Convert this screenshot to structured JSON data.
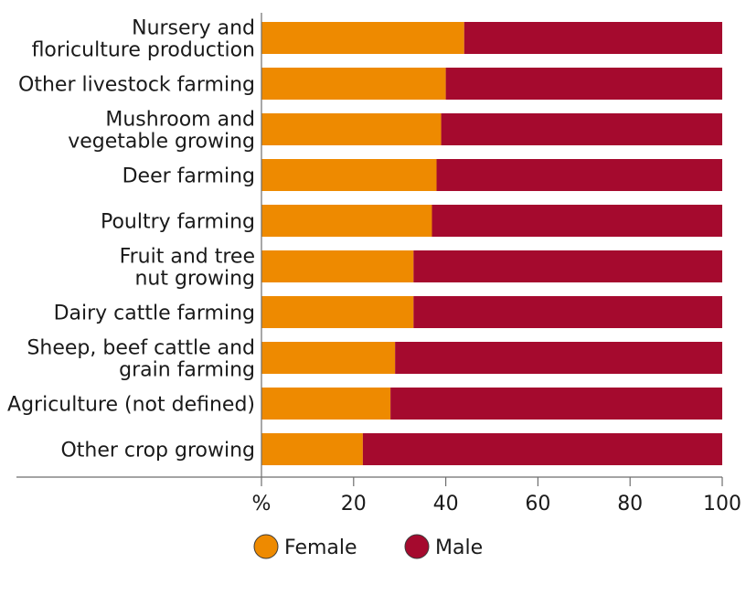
{
  "chart_data": {
    "type": "bar",
    "orientation": "horizontal",
    "stacked": true,
    "categories": [
      [
        "Nursery and",
        "floriculture production"
      ],
      [
        "Other livestock farming"
      ],
      [
        "Mushroom and",
        "vegetable growing"
      ],
      [
        "Deer farming"
      ],
      [
        "Poultry farming"
      ],
      [
        "Fruit and tree",
        "nut growing"
      ],
      [
        "Dairy cattle farming"
      ],
      [
        "Sheep, beef cattle and",
        "grain farming"
      ],
      [
        "Agriculture (not defined)"
      ],
      [
        "Other crop growing"
      ]
    ],
    "series": [
      {
        "name": "Female",
        "color": "#EE8A00",
        "values": [
          44,
          40,
          39,
          38,
          37,
          33,
          33,
          29,
          28,
          22
        ]
      },
      {
        "name": "Male",
        "color": "#A50A2E",
        "values": [
          56,
          60,
          61,
          62,
          63,
          67,
          67,
          71,
          72,
          78
        ]
      }
    ],
    "xlim": [
      0,
      100
    ],
    "ticks": [
      0,
      20,
      40,
      60,
      80,
      100
    ],
    "tick_labels": [
      "%",
      "20",
      "40",
      "60",
      "80",
      "100"
    ],
    "legend_position": "bottom-center",
    "grid": false
  }
}
